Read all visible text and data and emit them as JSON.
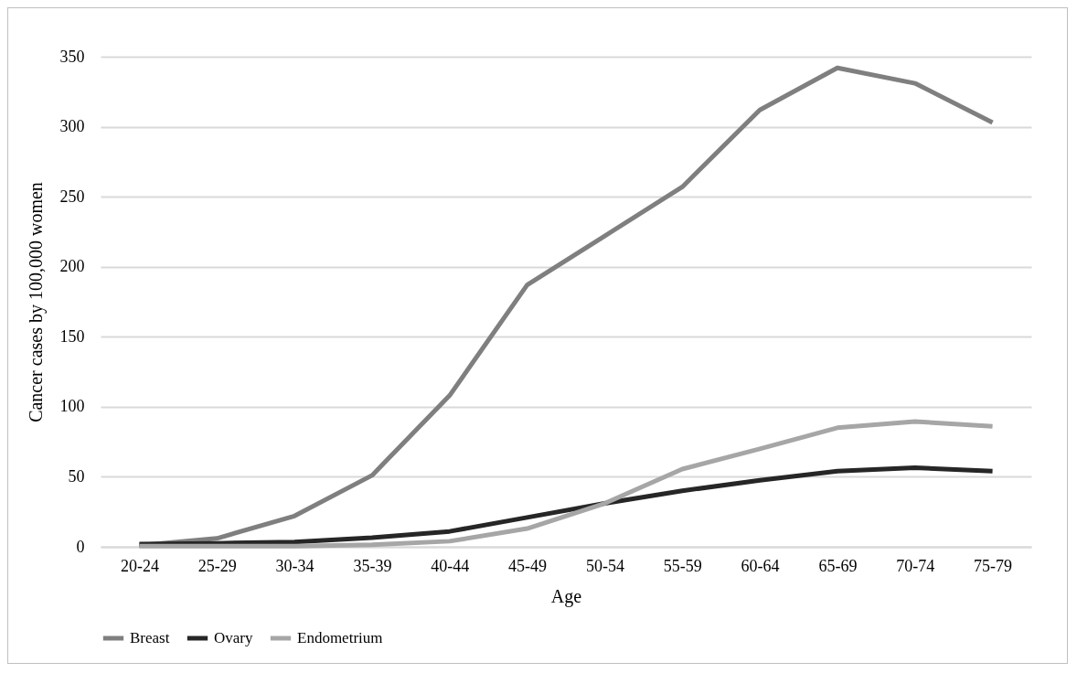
{
  "chart_data": {
    "type": "line",
    "xlabel": "Age",
    "ylabel": "Cancer cases by 100,000 women",
    "categories": [
      "20-24",
      "25-29",
      "30-34",
      "35-39",
      "40-44",
      "45-49",
      "50-54",
      "55-59",
      "60-64",
      "65-69",
      "70-74",
      "75-79"
    ],
    "series": [
      {
        "name": "Breast",
        "color": "#7f7f7f",
        "values": [
          1,
          6,
          22,
          51,
          108,
          187,
          222,
          257,
          312,
          342,
          331,
          303
        ]
      },
      {
        "name": "Ovary",
        "color": "#262626",
        "values": [
          2,
          2.5,
          3.5,
          6.5,
          11,
          21,
          31,
          40,
          47.5,
          54,
          56.5,
          54
        ]
      },
      {
        "name": "Endometrium",
        "color": "#a6a6a6",
        "values": [
          0.5,
          0.5,
          0.5,
          1.5,
          4,
          13,
          31,
          55.5,
          70,
          85,
          89.5,
          86
        ]
      }
    ],
    "ylim": [
      0,
      350
    ],
    "yticks": [
      0,
      50,
      100,
      150,
      200,
      250,
      300,
      350
    ],
    "grid": "y",
    "legend": "bottom",
    "marker": "none",
    "line_style": "solid"
  }
}
